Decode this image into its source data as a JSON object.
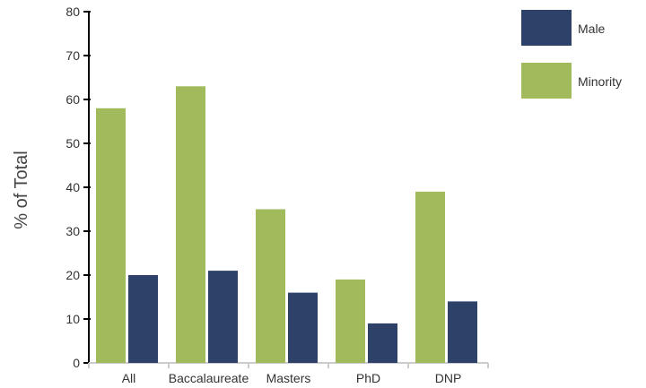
{
  "chart_data": {
    "type": "bar",
    "categories": [
      "All",
      "Baccalaureate",
      "Masters",
      "PhD",
      "DNP"
    ],
    "series": [
      {
        "name": "Minority",
        "values": [
          58,
          63,
          35,
          19,
          39
        ]
      },
      {
        "name": "Male",
        "values": [
          20,
          21,
          16,
          9,
          14
        ]
      }
    ],
    "xlabel": "",
    "ylabel": "% of Total",
    "ylim": [
      0,
      80
    ],
    "yticks": [
      0,
      10,
      20,
      30,
      40,
      50,
      60,
      70,
      80
    ],
    "grid": false,
    "legend": {
      "placement": "right",
      "entries": [
        {
          "name": "Male",
          "color": "#2e4169"
        },
        {
          "name": "Minority",
          "color": "#a1ba5c"
        }
      ]
    },
    "colors": {
      "Minority": "#a1ba5c",
      "Male": "#2e4169",
      "axis": "#000000"
    }
  }
}
